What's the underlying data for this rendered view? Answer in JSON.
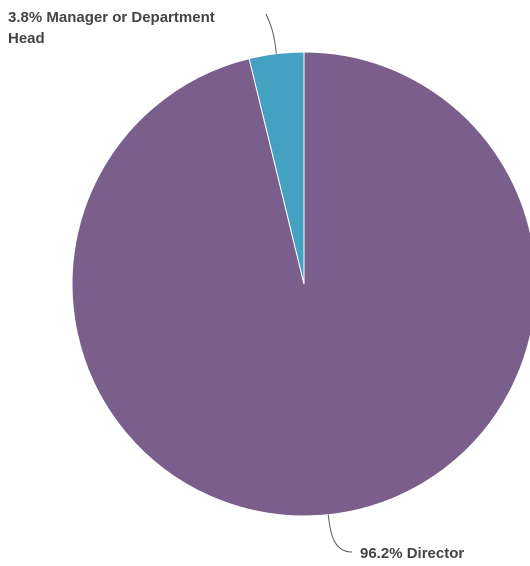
{
  "chart_data": {
    "type": "pie",
    "title": "",
    "slices": [
      {
        "label": "Manager or Department Head",
        "value": 3.8,
        "label_text": "3.8% Manager or Department Head",
        "label_lines": [
          "3.8% Manager or Department",
          "Head"
        ],
        "color": "#44a1c2"
      },
      {
        "label": "Director",
        "value": 96.2,
        "label_text": "96.2% Director",
        "label_lines": [
          "96.2% Director"
        ],
        "color": "#7a5f8c"
      }
    ],
    "start_angle": "12 o'clock",
    "direction": "clockwise",
    "legend": "none"
  }
}
